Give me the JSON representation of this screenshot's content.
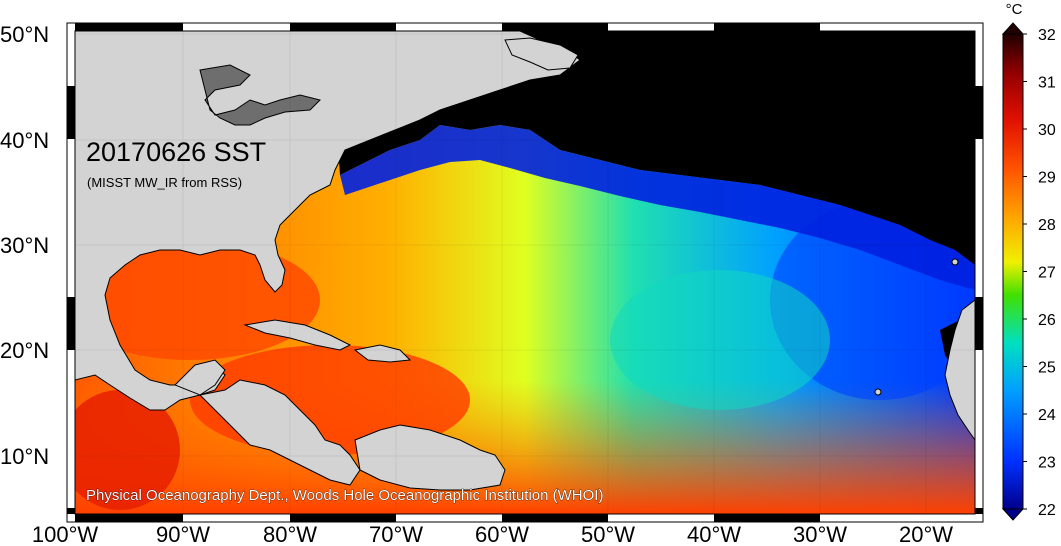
{
  "map": {
    "date_title": "20170626 SST",
    "subtitle": "(MISST MW_IR from RSS)",
    "credit": "Physical Oceanography Dept., Woods Hole Oceanographic Institution (WHOI)",
    "lat_labels": [
      "50°N",
      "40°N",
      "30°N",
      "20°N",
      "10°N"
    ],
    "lon_labels": [
      "100°W",
      "90°W",
      "80°W",
      "70°W",
      "60°W",
      "50°W",
      "40°W",
      "30°W",
      "20°W"
    ],
    "colors": {
      "land": "#d3d3d3",
      "no_data": "#000000",
      "coast": "#000000"
    }
  },
  "colorbar": {
    "unit": "°C",
    "ticks": [
      "32",
      "31",
      "30",
      "29",
      "28",
      "27",
      "26",
      "25",
      "24",
      "23",
      "22"
    ],
    "range": [
      22,
      32
    ],
    "stops": [
      "#00008b",
      "#0030ff",
      "#00a0ff",
      "#00e0c0",
      "#40e000",
      "#f0f000",
      "#ffa000",
      "#ff5000",
      "#e01000",
      "#900000",
      "#200000"
    ]
  }
}
